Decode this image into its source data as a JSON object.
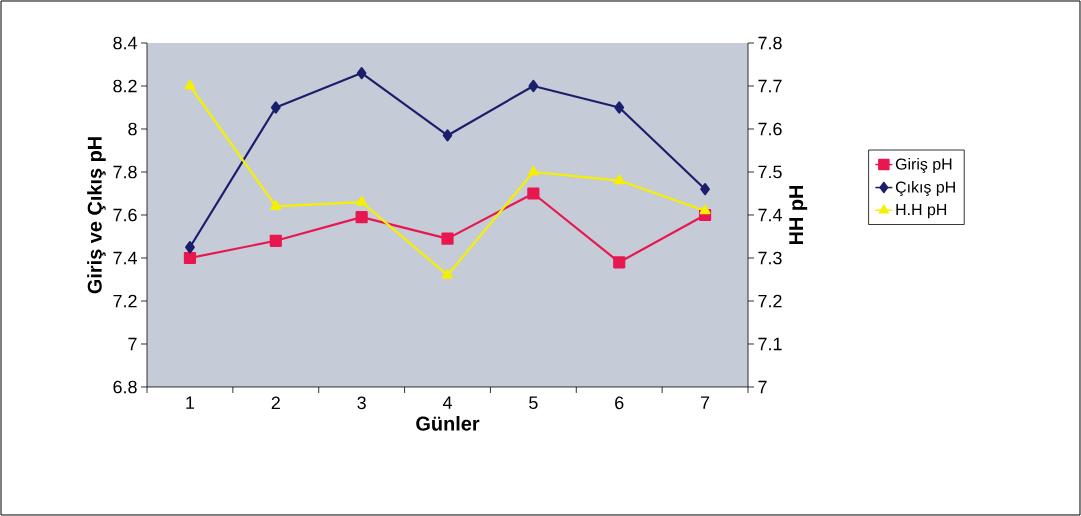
{
  "chart_data": {
    "type": "line",
    "xlabel": "Günler",
    "ylabel": "Giriş ve Çıkış pH",
    "y2label": "HH pH",
    "categories": [
      "1",
      "2",
      "3",
      "4",
      "5",
      "6",
      "7"
    ],
    "series": [
      {
        "name": "Giriş pH",
        "color": "#e8174f",
        "marker": "square",
        "values": [
          7.4,
          7.48,
          7.59,
          7.49,
          7.7,
          7.38,
          7.6
        ]
      },
      {
        "name": "Çıkış pH",
        "color": "#1b1f6b",
        "marker": "diamond",
        "values": [
          7.45,
          8.1,
          8.26,
          7.97,
          8.2,
          8.1,
          7.72
        ]
      },
      {
        "name": "H.H pH",
        "color": "#f5f000",
        "marker": "triangle",
        "axis": "y2",
        "values": [
          7.7,
          7.42,
          7.43,
          7.26,
          7.5,
          7.48,
          7.41
        ]
      }
    ],
    "ylim": [
      6.8,
      8.4
    ],
    "yticks": [
      6.8,
      7,
      7.2,
      7.4,
      7.6,
      7.8,
      8,
      8.2,
      8.4
    ],
    "y2lim": [
      7,
      7.8
    ],
    "y2ticks": [
      7,
      7.1,
      7.2,
      7.3,
      7.4,
      7.5,
      7.6,
      7.7,
      7.8
    ],
    "legend": "right",
    "grid": false
  }
}
